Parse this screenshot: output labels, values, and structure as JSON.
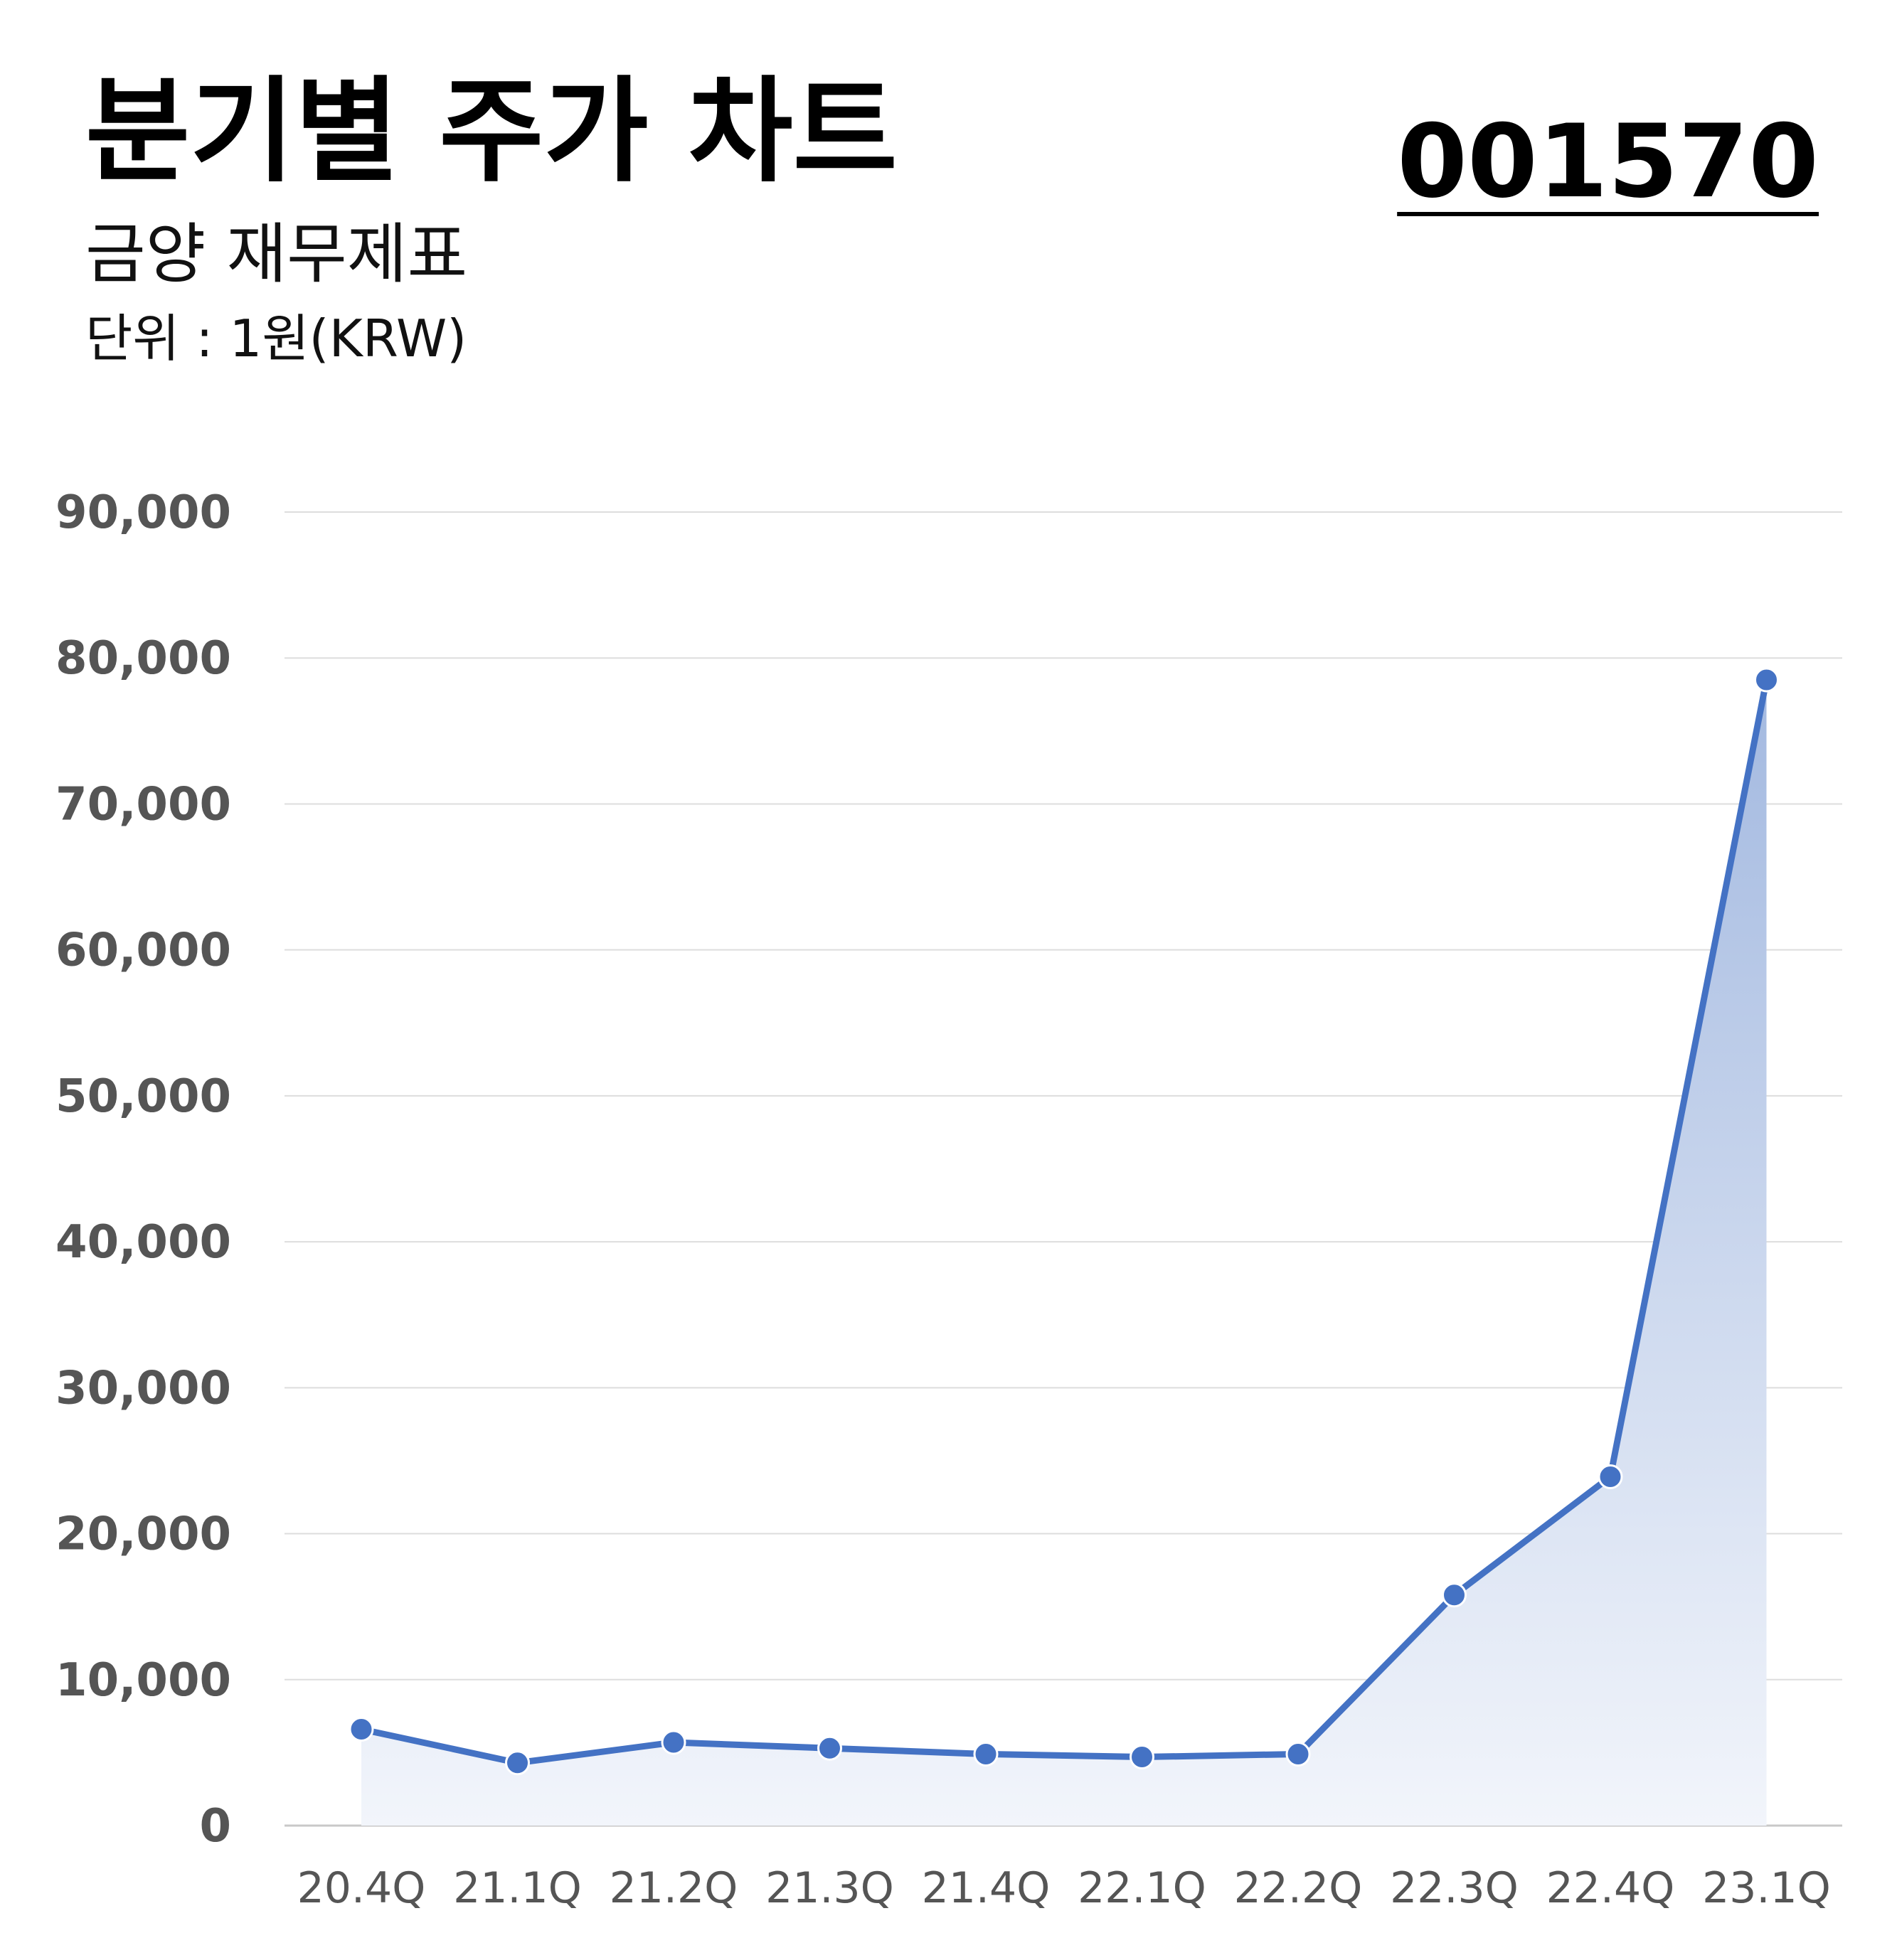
{
  "header": {
    "title": "분기별 주가 차트",
    "subtitle": "금양 재무제표",
    "unit": "단위 : 1원(KRW)",
    "code": "001570"
  },
  "colors": {
    "line": "#4472C4",
    "area_top": "#A3B9E0",
    "area_bottom": "#F2F5FB",
    "grid": "#DDDDDD",
    "tick_text": "#555555"
  },
  "chart_data": {
    "type": "area",
    "categories": [
      "20.4Q",
      "21.1Q",
      "21.2Q",
      "21.3Q",
      "21.4Q",
      "22.1Q",
      "22.2Q",
      "22.3Q",
      "22.4Q",
      "23.1Q"
    ],
    "series": [
      {
        "values": [
          6600,
          4300,
          5700,
          5300,
          4900,
          4700,
          4900,
          15800,
          23900,
          78500
        ]
      }
    ],
    "ylim": [
      0,
      90000
    ],
    "yticks": [
      0,
      10000,
      20000,
      30000,
      40000,
      50000,
      60000,
      70000,
      80000,
      90000
    ],
    "ytick_labels": [
      "0",
      "10,000",
      "20,000",
      "30,000",
      "40,000",
      "50,000",
      "60,000",
      "70,000",
      "80,000",
      "90,000"
    ],
    "grid": true,
    "markers": true
  }
}
